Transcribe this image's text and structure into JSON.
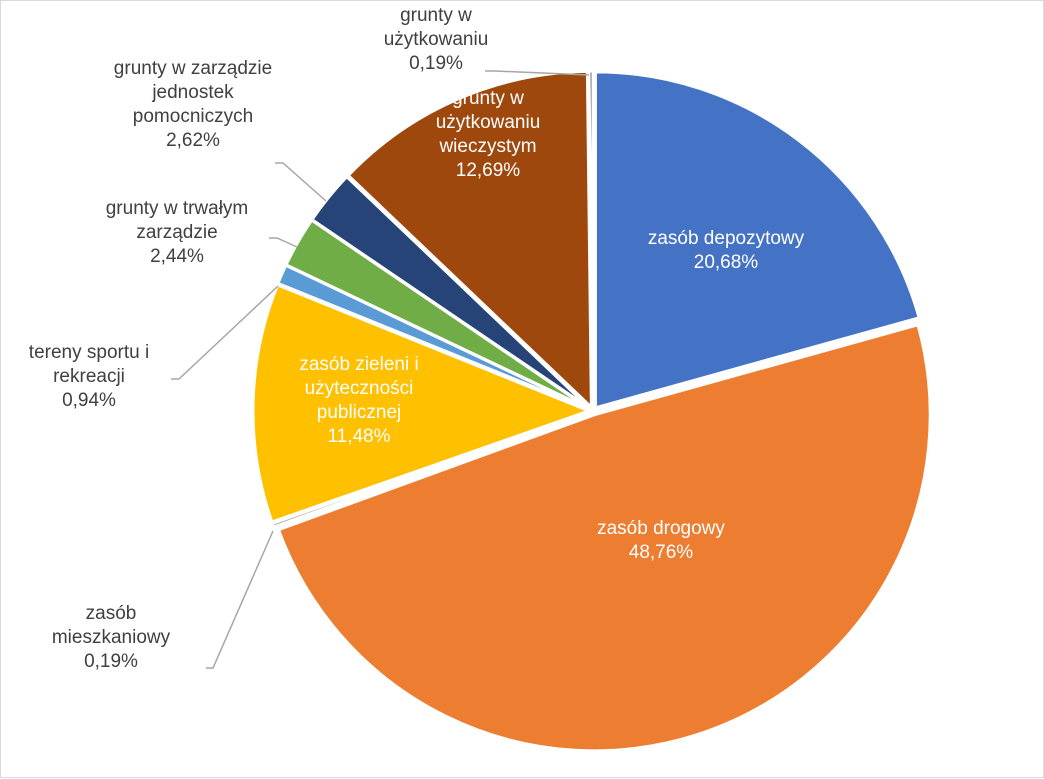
{
  "chart_data": {
    "type": "pie",
    "title": "",
    "slices": [
      {
        "label_lines": [
          "zasób depozytowy"
        ],
        "value_text": "20,68%",
        "value": 20.68,
        "color": "#4472C4",
        "label_color": "#ffffff",
        "label_position": "inside"
      },
      {
        "label_lines": [
          "zasób drogowy"
        ],
        "value_text": "48,76%",
        "value": 48.76,
        "color": "#ED7D31",
        "label_color": "#ffffff",
        "label_position": "inside"
      },
      {
        "label_lines": [
          "zasób",
          "mieszkaniowy"
        ],
        "value_text": "0,19%",
        "value": 0.19,
        "color": "#A5A5A5",
        "label_color": "#404040",
        "label_position": "outside"
      },
      {
        "label_lines": [
          "zasób zieleni i",
          "użyteczności",
          "publicznej"
        ],
        "value_text": "11,48%",
        "value": 11.48,
        "color": "#FFC000",
        "label_color": "#ffffff",
        "label_position": "inside"
      },
      {
        "label_lines": [
          "tereny sportu i",
          "rekreacji"
        ],
        "value_text": "0,94%",
        "value": 0.94,
        "color": "#5B9BD5",
        "label_color": "#404040",
        "label_position": "outside"
      },
      {
        "label_lines": [
          "grunty w trwałym",
          "zarządzie"
        ],
        "value_text": "2,44%",
        "value": 2.44,
        "color": "#70AD47",
        "label_color": "#404040",
        "label_position": "outside"
      },
      {
        "label_lines": [
          "grunty w zarządzie",
          "jednostek",
          "pomocniczych"
        ],
        "value_text": "2,62%",
        "value": 2.62,
        "color": "#264478",
        "label_color": "#404040",
        "label_position": "outside"
      },
      {
        "label_lines": [
          "grunty w",
          "użytkowaniu",
          "wieczystym"
        ],
        "value_text": "12,69%",
        "value": 12.69,
        "color": "#9E480E",
        "label_color": "#ffffff",
        "label_position": "inside"
      },
      {
        "label_lines": [
          "grunty w",
          "użytkowaniu"
        ],
        "value_text": "0,19%",
        "value": 0.19,
        "color": "#636363",
        "label_color": "#404040",
        "label_position": "outside"
      }
    ],
    "legend": "none"
  }
}
